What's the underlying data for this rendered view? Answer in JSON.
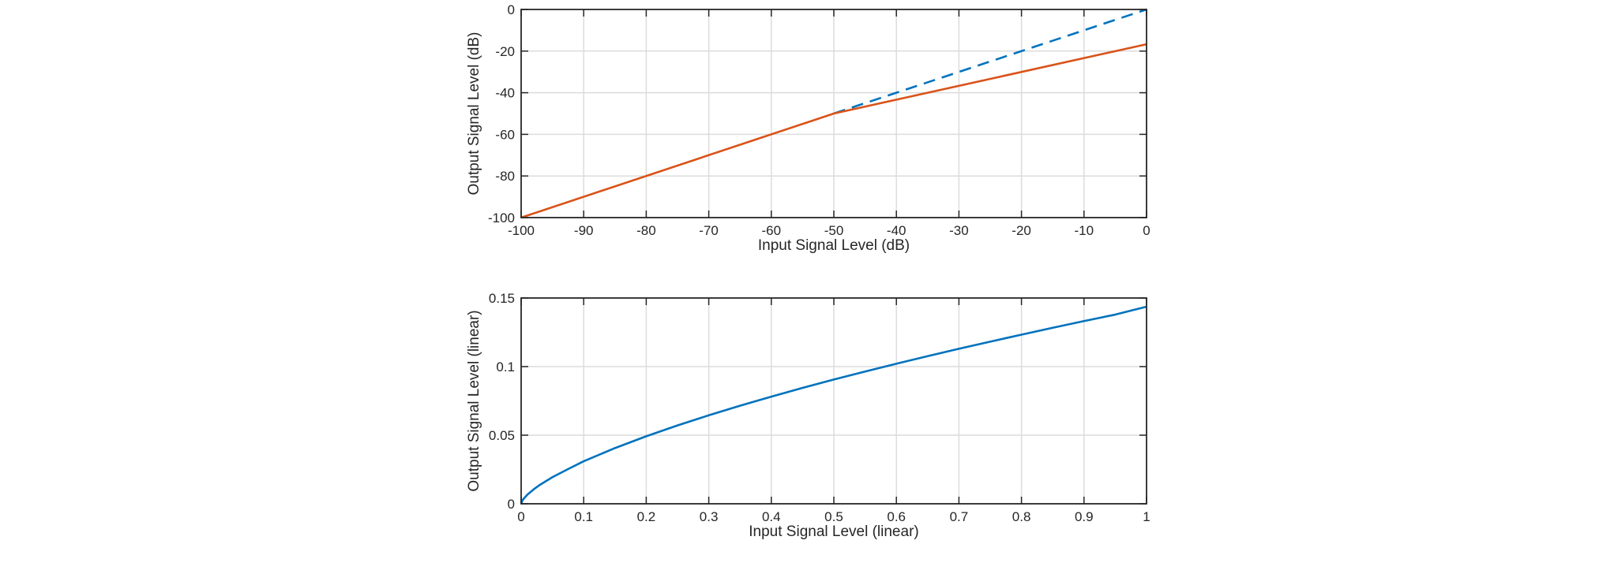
{
  "chart_data": [
    {
      "type": "line",
      "xlabel": "Input Signal Level (dB)",
      "ylabel": "Output Signal Level (dB)",
      "xlim": [
        -100,
        0
      ],
      "ylim": [
        -100,
        0
      ],
      "xticks": [
        -100,
        -90,
        -80,
        -70,
        -60,
        -50,
        -40,
        -30,
        -20,
        -10,
        0
      ],
      "yticks": [
        -100,
        -80,
        -60,
        -40,
        -20,
        0
      ],
      "xtick_labels": [
        "-100",
        "-90",
        "-80",
        "-70",
        "-60",
        "-50",
        "-40",
        "-30",
        "-20",
        "-10",
        "0"
      ],
      "ytick_labels": [
        "-100",
        "-80",
        "-60",
        "-40",
        "-20",
        "0"
      ],
      "grid": true,
      "legend": "none",
      "series": [
        {
          "color": "#0072BD",
          "style": "dashed",
          "points": [
            [
              -50,
              -50
            ],
            [
              0,
              0
            ]
          ]
        },
        {
          "color": "#D95319",
          "style": "solid",
          "points": [
            [
              -100,
              -100
            ],
            [
              -50,
              -50
            ],
            [
              0,
              -16.7
            ]
          ]
        }
      ]
    },
    {
      "type": "line",
      "xlabel": "Input Signal Level (linear)",
      "ylabel": "Output Signal Level (linear)",
      "xlim": [
        0,
        1
      ],
      "ylim": [
        0,
        0.15
      ],
      "xticks": [
        0,
        0.1,
        0.2,
        0.3,
        0.4,
        0.5,
        0.6,
        0.7,
        0.8,
        0.9,
        1
      ],
      "yticks": [
        0,
        0.05,
        0.1,
        0.15
      ],
      "xtick_labels": [
        "0",
        "0.1",
        "0.2",
        "0.3",
        "0.4",
        "0.5",
        "0.6",
        "0.7",
        "0.8",
        "0.9",
        "1"
      ],
      "ytick_labels": [
        "0",
        "0.05",
        "0.1",
        "0.15"
      ],
      "grid": true,
      "legend": "none",
      "series": [
        {
          "color": "#0072BD",
          "style": "solid",
          "points": [
            [
              0,
              0
            ],
            [
              0.002,
              0.0024
            ],
            [
              0.005,
              0.0042
            ],
            [
              0.01,
              0.0067
            ],
            [
              0.02,
              0.0105
            ],
            [
              0.03,
              0.0138
            ],
            [
              0.05,
              0.0194
            ],
            [
              0.075,
              0.0253
            ],
            [
              0.1,
              0.031
            ],
            [
              0.15,
              0.0406
            ],
            [
              0.2,
              0.0492
            ],
            [
              0.25,
              0.0571
            ],
            [
              0.3,
              0.0645
            ],
            [
              0.35,
              0.0715
            ],
            [
              0.4,
              0.0781
            ],
            [
              0.45,
              0.0845
            ],
            [
              0.5,
              0.0906
            ],
            [
              0.55,
              0.0964
            ],
            [
              0.6,
              0.1021
            ],
            [
              0.65,
              0.1076
            ],
            [
              0.7,
              0.113
            ],
            [
              0.75,
              0.1182
            ],
            [
              0.8,
              0.1233
            ],
            [
              0.85,
              0.1283
            ],
            [
              0.9,
              0.1332
            ],
            [
              0.95,
              0.1379
            ],
            [
              1.0,
              0.1437
            ]
          ]
        }
      ]
    }
  ]
}
